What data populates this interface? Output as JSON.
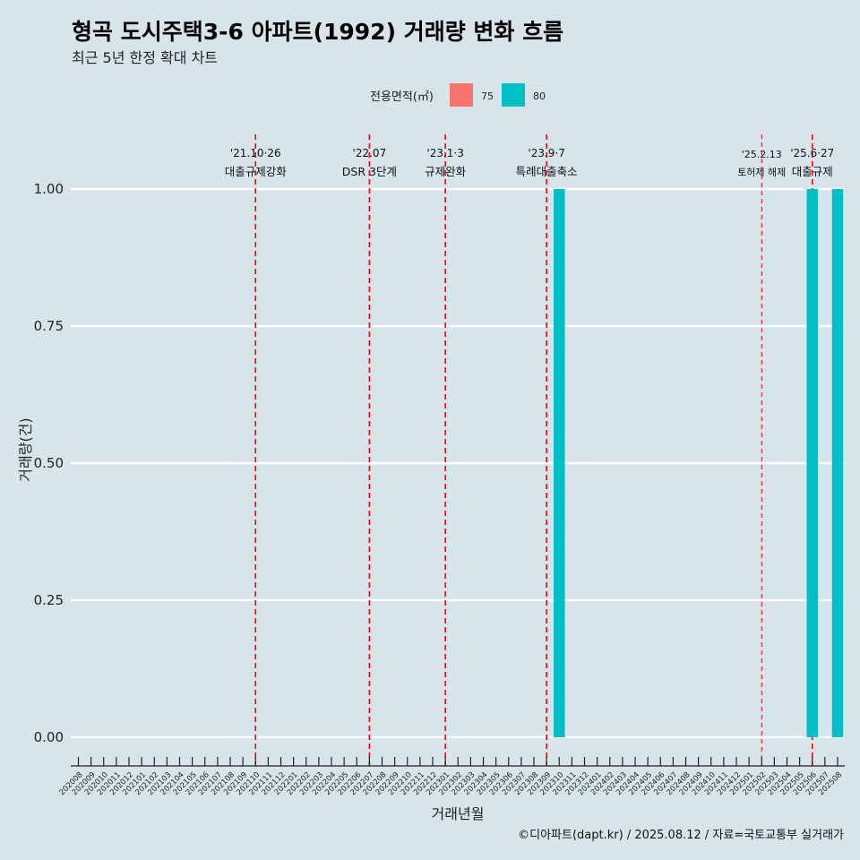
{
  "title": "형곡 도시주택3-6 아파트(1992) 거래량 변화 흐름",
  "subtitle": "최근 5년 한정 확대 차트",
  "caption": "©디아파트(dapt.kr) / 2025.08.12 / 자료=국토교통부 실거래가",
  "legend": {
    "title": "전용면적(㎡)",
    "items": [
      {
        "label": "75",
        "color": "#F8766D"
      },
      {
        "label": "80",
        "color": "#00BFC4"
      }
    ]
  },
  "chart_data": {
    "type": "bar",
    "title": "형곡 도시주택3-6 아파트(1992) 거래량 변화 흐름",
    "subtitle": "최근 5년 한정 확대 차트",
    "xlabel": "거래년월",
    "ylabel": "거래량(건)",
    "ylim": [
      0,
      1
    ],
    "yticks": [
      "0.00",
      "0.25",
      "0.50",
      "0.75",
      "1.00"
    ],
    "categories": [
      "202008",
      "202009",
      "202010",
      "202011",
      "202012",
      "202101",
      "202102",
      "202103",
      "202104",
      "202105",
      "202106",
      "202107",
      "202108",
      "202109",
      "202110",
      "202111",
      "202112",
      "202201",
      "202202",
      "202203",
      "202204",
      "202205",
      "202206",
      "202207",
      "202208",
      "202209",
      "202210",
      "202211",
      "202212",
      "202301",
      "202302",
      "202303",
      "202304",
      "202305",
      "202306",
      "202307",
      "202308",
      "202309",
      "202310",
      "202311",
      "202312",
      "202401",
      "202402",
      "202403",
      "202404",
      "202405",
      "202406",
      "202407",
      "202408",
      "202409",
      "202410",
      "202411",
      "202412",
      "202501",
      "202502",
      "202503",
      "202504",
      "202505",
      "202506",
      "202507",
      "202508"
    ],
    "series": [
      {
        "name": "80",
        "color": "#00BFC4",
        "points": [
          {
            "x": "202310",
            "y": 1
          },
          {
            "x": "202506",
            "y": 1
          },
          {
            "x": "202508",
            "y": 1
          }
        ]
      }
    ],
    "grid": true,
    "legend_position": "top",
    "annotations": [
      {
        "x": "202110",
        "date": "'21.10·26",
        "text": "대출규제강화",
        "style": "dashed"
      },
      {
        "x": "202207",
        "date": "'22.07",
        "text": "DSR 3단계",
        "style": "dashed"
      },
      {
        "x": "202301",
        "date": "'23.1·3",
        "text": "규제완화",
        "style": "dashed"
      },
      {
        "x": "202309",
        "date": "'23.9·7",
        "text": "특례대출축소",
        "style": "dashed"
      },
      {
        "x": "202502",
        "date": "'25.2.13",
        "text": "토허제 해제",
        "style": "dashed-thin"
      },
      {
        "x": "202506",
        "date": "'25.6·27",
        "text": "대출규제",
        "style": "dashed"
      }
    ]
  }
}
